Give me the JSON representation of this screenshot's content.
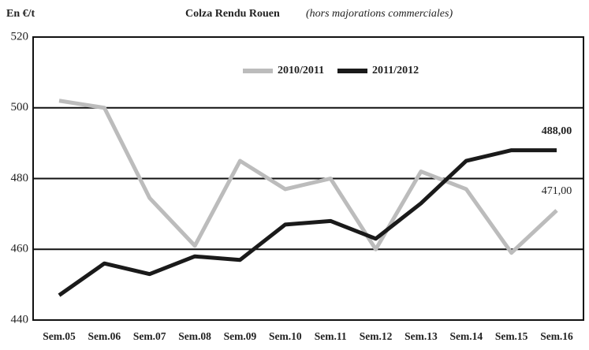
{
  "chart_data": {
    "type": "line",
    "title": "Colza Rendu Rouen",
    "subtitle": "(hors majorations commerciales)",
    "y_label": "En €/t",
    "categories": [
      "Sem.05",
      "Sem.06",
      "Sem.07",
      "Sem.08",
      "Sem.09",
      "Sem.10",
      "Sem.11",
      "Sem.12",
      "Sem.13",
      "Sem.14",
      "Sem.15",
      "Sem.16"
    ],
    "series": [
      {
        "name": "2010/2011",
        "color": "#bcbcbc",
        "values": [
          502,
          500,
          474.5,
          461,
          485,
          477,
          480,
          460,
          482,
          477,
          459,
          471
        ],
        "value_labels": [
          null,
          null,
          null,
          null,
          null,
          null,
          null,
          null,
          null,
          null,
          null,
          "471,00"
        ]
      },
      {
        "name": "2011/2012",
        "color": "#1a1a1a",
        "values": [
          447,
          456,
          453,
          458,
          457,
          467,
          468,
          463,
          473,
          485,
          488,
          488
        ],
        "value_labels": [
          null,
          null,
          null,
          null,
          null,
          null,
          null,
          null,
          null,
          null,
          null,
          "488,00"
        ]
      }
    ],
    "ylim": [
      440,
      520
    ],
    "yticks": [
      440,
      460,
      480,
      500,
      520
    ],
    "grid": true
  }
}
